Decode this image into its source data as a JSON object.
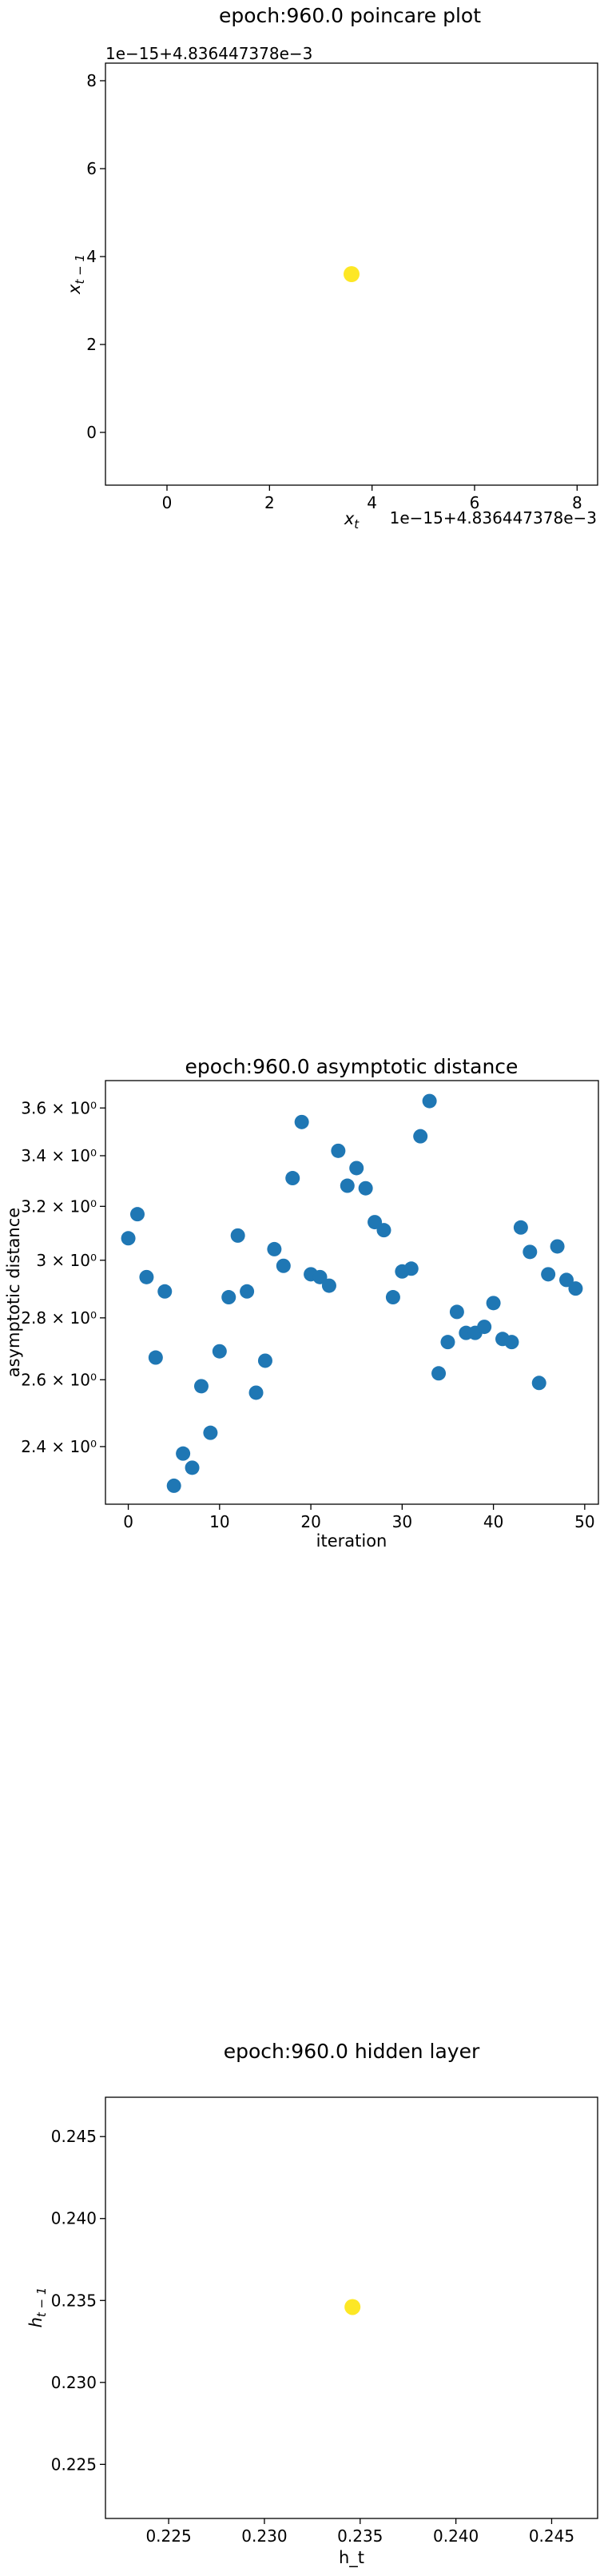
{
  "chart_data": [
    {
      "type": "scatter",
      "title": "epoch:960.0 poincare plot",
      "xlabel": "x_t",
      "ylabel": "x_{t-1}",
      "x_offset_text": "1e−15+4.836447378e−3",
      "y_offset_text": "1e−15+4.836447378e−3",
      "xlim": [
        -1.2,
        8.4
      ],
      "ylim": [
        -1.2,
        8.4
      ],
      "xticks": [
        0,
        2,
        4,
        6,
        8
      ],
      "xtick_labels": [
        "0",
        "2",
        "4",
        "6",
        "8"
      ],
      "yticks": [
        0,
        2,
        4,
        6,
        8
      ],
      "ytick_labels": [
        "0",
        "2",
        "4",
        "6",
        "8"
      ],
      "color": "#fde725",
      "points": [
        {
          "x": 3.6,
          "y": 3.6
        }
      ]
    },
    {
      "type": "scatter",
      "title": "epoch:960.0 asymptotic distance",
      "xlabel": "iteration",
      "ylabel": "asymptotic distance",
      "y_scale": "log",
      "xlim": [
        -2.5,
        51.5
      ],
      "ylim": [
        2.24,
        3.72
      ],
      "xticks": [
        0,
        10,
        20,
        30,
        40,
        50
      ],
      "xtick_labels": [
        "0",
        "10",
        "20",
        "30",
        "40",
        "50"
      ],
      "yticks": [
        2.4,
        2.6,
        2.8,
        3.0,
        3.2,
        3.4,
        3.6
      ],
      "ytick_labels": [
        "2.4 × 10⁰",
        "2.6 × 10⁰",
        "2.8 × 10⁰",
        "3 × 10⁰",
        "3.2 × 10⁰",
        "3.4 × 10⁰",
        "3.6 × 10⁰"
      ],
      "color": "#1f77b4",
      "x": [
        0,
        1,
        2,
        3,
        4,
        5,
        6,
        7,
        8,
        9,
        10,
        11,
        12,
        13,
        14,
        15,
        16,
        17,
        18,
        19,
        20,
        21,
        22,
        23,
        24,
        25,
        26,
        27,
        28,
        29,
        30,
        31,
        32,
        33,
        34,
        35,
        36,
        37,
        38,
        39,
        40,
        41,
        42,
        43,
        44,
        45,
        46,
        47,
        48,
        49
      ],
      "y": [
        3.08,
        3.17,
        2.94,
        2.67,
        2.89,
        2.29,
        2.38,
        2.34,
        2.58,
        2.44,
        2.69,
        2.87,
        3.09,
        2.89,
        2.56,
        2.66,
        3.04,
        2.98,
        3.31,
        3.54,
        2.95,
        2.94,
        2.91,
        3.42,
        3.28,
        3.35,
        3.27,
        3.14,
        3.11,
        2.87,
        2.96,
        2.97,
        3.48,
        3.63,
        2.62,
        2.72,
        2.82,
        2.75,
        2.75,
        2.77,
        2.85,
        2.73,
        2.72,
        3.12,
        3.03,
        2.59,
        2.95,
        3.05,
        2.93,
        2.9
      ]
    },
    {
      "type": "scatter",
      "title": "epoch:960.0 hidden layer",
      "xlabel": "h_t",
      "ylabel": "h_{t-1}",
      "xlim": [
        0.2217,
        0.2474
      ],
      "ylim": [
        0.2217,
        0.2474
      ],
      "xticks": [
        0.225,
        0.23,
        0.235,
        0.24,
        0.245
      ],
      "xtick_labels": [
        "0.225",
        "0.230",
        "0.235",
        "0.240",
        "0.245"
      ],
      "yticks": [
        0.225,
        0.23,
        0.235,
        0.24,
        0.245
      ],
      "ytick_labels": [
        "0.225",
        "0.230",
        "0.235",
        "0.240",
        "0.245"
      ],
      "color": "#fde725",
      "points": [
        {
          "x": 0.2346,
          "y": 0.2346
        }
      ]
    }
  ]
}
